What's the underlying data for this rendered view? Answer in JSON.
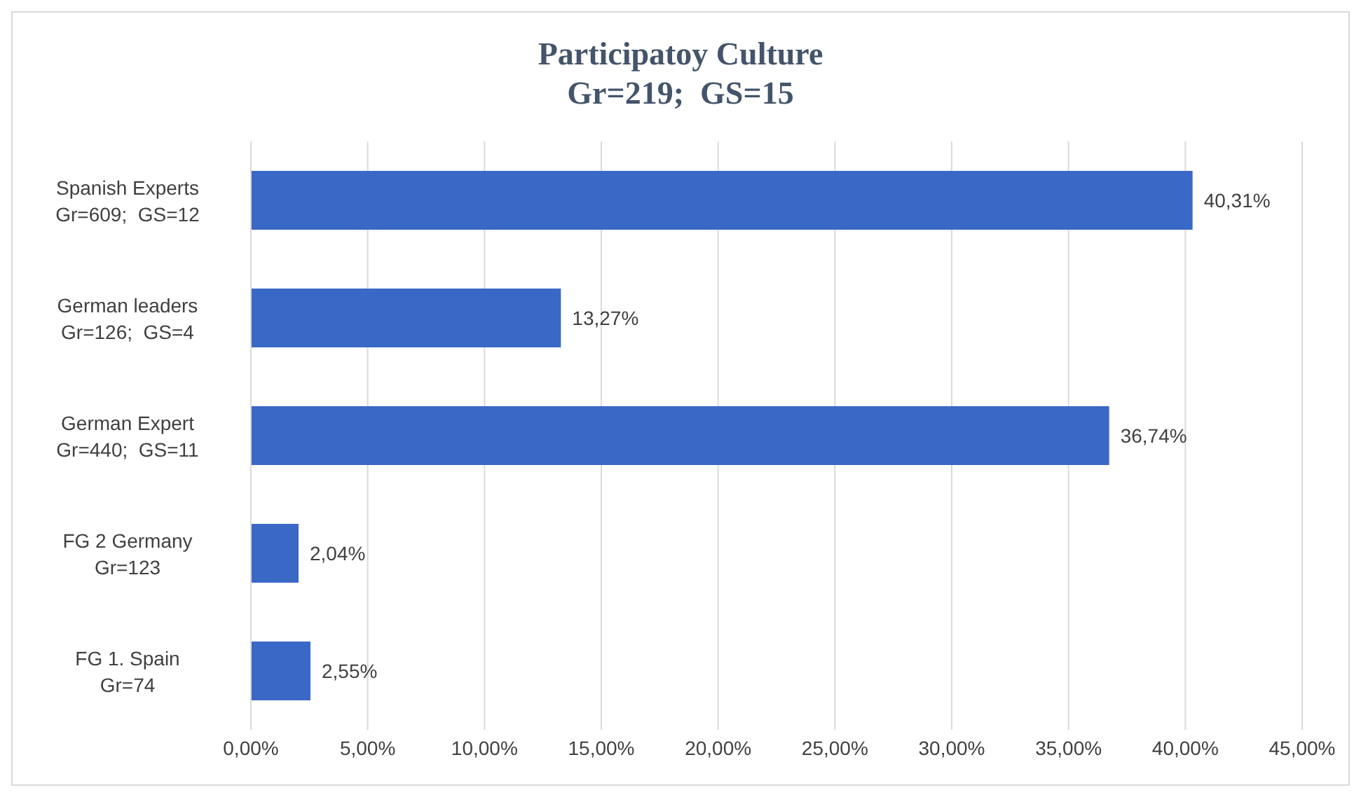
{
  "chart_data": {
    "type": "bar",
    "orientation": "horizontal",
    "title": "Participatoy Culture",
    "subtitle": "Gr=219;  GS=15",
    "categories": [
      "Spanish Experts\nGr=609;  GS=12",
      "German leaders\nGr=126;  GS=4",
      "German Expert\nGr=440;  GS=11",
      "FG 2 Germany\nGr=123",
      "FG 1. Spain\nGr=74"
    ],
    "values": [
      40.31,
      13.27,
      36.74,
      2.04,
      2.55
    ],
    "value_labels": [
      "40,31%",
      "13,27%",
      "36,74%",
      "2,04%",
      "2,55%"
    ],
    "color": "#3a68c6",
    "xlim": [
      0,
      45
    ],
    "xticks": [
      {
        "value": 0,
        "label": "0,00%"
      },
      {
        "value": 5,
        "label": "5,00%"
      },
      {
        "value": 10,
        "label": "10,00%"
      },
      {
        "value": 15,
        "label": "15,00%"
      },
      {
        "value": 20,
        "label": "20,00%"
      },
      {
        "value": 25,
        "label": "25,00%"
      },
      {
        "value": 30,
        "label": "30,00%"
      },
      {
        "value": 35,
        "label": "35,00%"
      },
      {
        "value": 40,
        "label": "40,00%"
      },
      {
        "value": 45,
        "label": "45,00%"
      }
    ],
    "grid": "x"
  }
}
